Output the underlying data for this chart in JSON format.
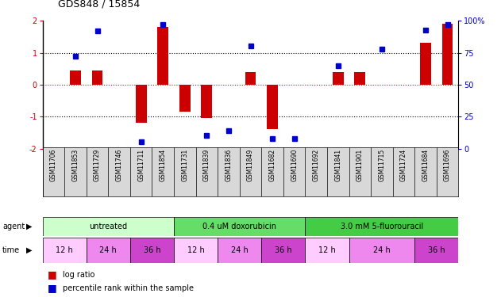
{
  "title": "GDS848 / 15854",
  "samples": [
    "GSM11706",
    "GSM11853",
    "GSM11729",
    "GSM11746",
    "GSM11711",
    "GSM11854",
    "GSM11731",
    "GSM11839",
    "GSM11836",
    "GSM11849",
    "GSM11682",
    "GSM11690",
    "GSM11692",
    "GSM11841",
    "GSM11901",
    "GSM11715",
    "GSM11724",
    "GSM11684",
    "GSM11696"
  ],
  "log_ratio": [
    0.0,
    0.45,
    0.45,
    0.0,
    -1.2,
    1.8,
    -0.85,
    -1.05,
    0.0,
    0.4,
    -1.4,
    0.0,
    0.0,
    0.4,
    0.4,
    0.0,
    0.0,
    1.3,
    1.9
  ],
  "percentile": [
    null,
    72,
    92,
    null,
    5,
    97,
    null,
    10,
    14,
    80,
    8,
    8,
    null,
    65,
    null,
    78,
    null,
    93,
    97
  ],
  "agents": [
    {
      "label": "untreated",
      "start": 0,
      "end": 6,
      "color": "#ccffcc"
    },
    {
      "label": "0.4 uM doxorubicin",
      "start": 6,
      "end": 12,
      "color": "#66dd66"
    },
    {
      "label": "3.0 mM 5-fluorouracil",
      "start": 12,
      "end": 19,
      "color": "#44cc44"
    }
  ],
  "times": [
    {
      "label": "12 h",
      "start": 0,
      "end": 2,
      "color": "#ffccff"
    },
    {
      "label": "24 h",
      "start": 2,
      "end": 4,
      "color": "#ee88ee"
    },
    {
      "label": "36 h",
      "start": 4,
      "end": 6,
      "color": "#cc44cc"
    },
    {
      "label": "12 h",
      "start": 6,
      "end": 8,
      "color": "#ffccff"
    },
    {
      "label": "24 h",
      "start": 8,
      "end": 10,
      "color": "#ee88ee"
    },
    {
      "label": "36 h",
      "start": 10,
      "end": 12,
      "color": "#cc44cc"
    },
    {
      "label": "12 h",
      "start": 12,
      "end": 14,
      "color": "#ffccff"
    },
    {
      "label": "24 h",
      "start": 14,
      "end": 17,
      "color": "#ee88ee"
    },
    {
      "label": "36 h",
      "start": 17,
      "end": 19,
      "color": "#cc44cc"
    }
  ],
  "ylim": [
    -2,
    2
  ],
  "y2lim": [
    0,
    100
  ],
  "bar_color": "#cc0000",
  "dot_color": "#0000cc"
}
